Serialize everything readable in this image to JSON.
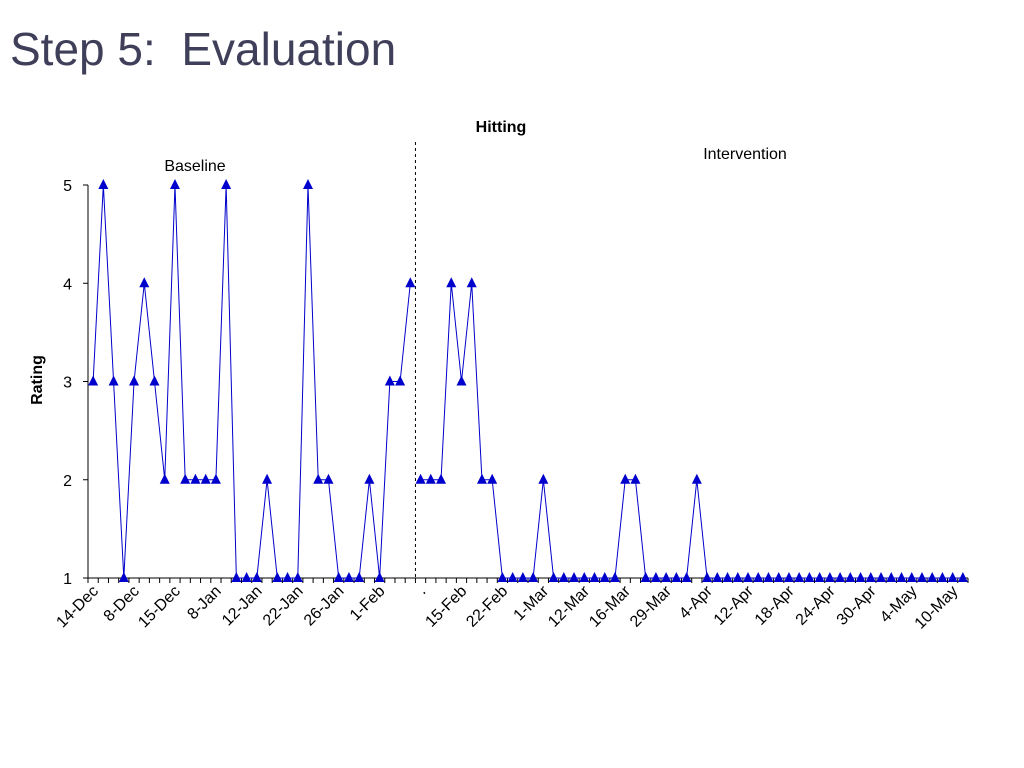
{
  "slide": {
    "title": "Step 5:  Evaluation"
  },
  "chart_data": {
    "type": "line",
    "title": "Hitting",
    "xlabel": "",
    "ylabel": "Rating",
    "ylim": [
      1,
      5
    ],
    "yticks": [
      1,
      2,
      3,
      4,
      5
    ],
    "annotations": {
      "baseline": "Baseline",
      "intervention": "Intervention"
    },
    "phase_change_after_index": 31,
    "x_tick_labels": [
      "14-Dec",
      "8-Dec",
      "15-Dec",
      "8-Jan",
      "12-Jan",
      "22-Jan",
      "26-Jan",
      "1-Feb",
      ".",
      "15-Feb",
      "22-Feb",
      "1-Mar",
      "12-Mar",
      "16-Mar",
      "29-Mar",
      "4-Apr",
      "12-Apr",
      "18-Apr",
      "24-Apr",
      "30-Apr",
      "4-May",
      "10-May"
    ],
    "series": [
      {
        "values": [
          3,
          5,
          3,
          1,
          3,
          4,
          3,
          2,
          5,
          2,
          2,
          2,
          2,
          5,
          1,
          1,
          1,
          2,
          1,
          1,
          1,
          5,
          2,
          2,
          1,
          1,
          1,
          2,
          1,
          3,
          3,
          4,
          2,
          2,
          2,
          4,
          3,
          4,
          2,
          2,
          1,
          1,
          1,
          1,
          2,
          1,
          1,
          1,
          1,
          1,
          1,
          1,
          2,
          2,
          1,
          1,
          1,
          1,
          1,
          2,
          1,
          1,
          1,
          1,
          1,
          1,
          1,
          1,
          1,
          1,
          1,
          1,
          1,
          1,
          1,
          1,
          1,
          1,
          1,
          1,
          1,
          1,
          1,
          1,
          1,
          1
        ],
        "color": "#0000cc"
      }
    ],
    "grid": false,
    "legend": "none"
  }
}
